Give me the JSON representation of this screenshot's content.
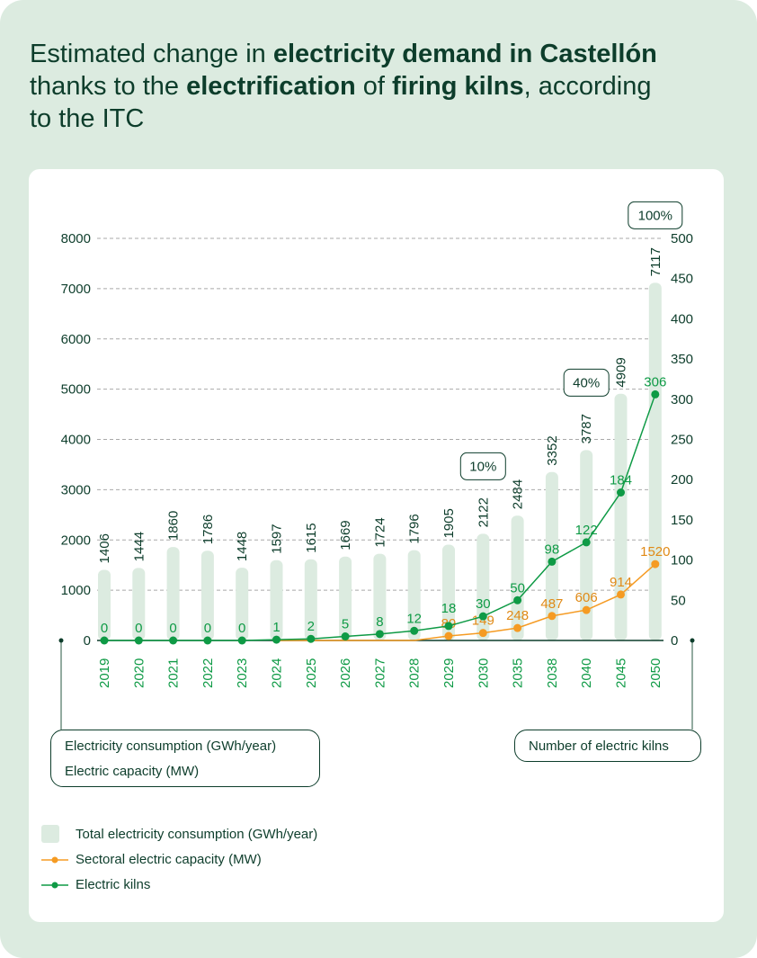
{
  "title": {
    "p1": "Estimated change in ",
    "b1": "electricity demand in Castellón",
    "p2": " thanks to the ",
    "b2": "electrification",
    "p3": " of ",
    "b3": "firing kilns",
    "p4": ", according to the ITC"
  },
  "chart_data": {
    "type": "bar",
    "categories": [
      "2019",
      "2020",
      "2021",
      "2022",
      "2023",
      "2024",
      "2025",
      "2026",
      "2027",
      "2028",
      "2029",
      "2030",
      "2035",
      "2038",
      "2040",
      "2045",
      "2050"
    ],
    "left_axis": {
      "labels": [
        "Electricity consumption (GWh/year)",
        "Electric capacity (MW)"
      ],
      "ylim": [
        0,
        8000
      ],
      "ticks": [
        0,
        1000,
        2000,
        3000,
        4000,
        5000,
        6000,
        7000,
        8000
      ]
    },
    "right_axis": {
      "label": "Number of electric kilns",
      "ylim": [
        0,
        500
      ],
      "ticks": [
        0,
        50,
        100,
        150,
        200,
        250,
        300,
        350,
        400,
        450,
        500
      ]
    },
    "grid": true,
    "series": [
      {
        "name": "Total electricity consumption (GWh/year)",
        "type": "bar",
        "axis": "left",
        "color": "#dcebe0",
        "values": [
          1406,
          1444,
          1860,
          1786,
          1448,
          1597,
          1615,
          1669,
          1724,
          1796,
          1905,
          2122,
          2484,
          3352,
          3787,
          4909,
          7117
        ]
      },
      {
        "name": "Sectoral electric capacity (MW)",
        "type": "line",
        "axis": "left",
        "color": "#f59b23",
        "values": [
          null,
          null,
          null,
          null,
          null,
          0,
          0,
          0,
          0,
          0,
          89,
          149,
          248,
          487,
          606,
          914,
          1520
        ]
      },
      {
        "name": "Electric kilns",
        "type": "line",
        "axis": "right",
        "color": "#0e9a45",
        "values": [
          0,
          0,
          0,
          0,
          0,
          1,
          2,
          5,
          8,
          12,
          18,
          30,
          50,
          98,
          122,
          184,
          306
        ]
      }
    ],
    "annotations": [
      {
        "category": "2030",
        "text": "10%"
      },
      {
        "category": "2040",
        "text": "40%"
      },
      {
        "category": "2050",
        "text": "100%"
      }
    ],
    "legend_position": "bottom-left"
  }
}
